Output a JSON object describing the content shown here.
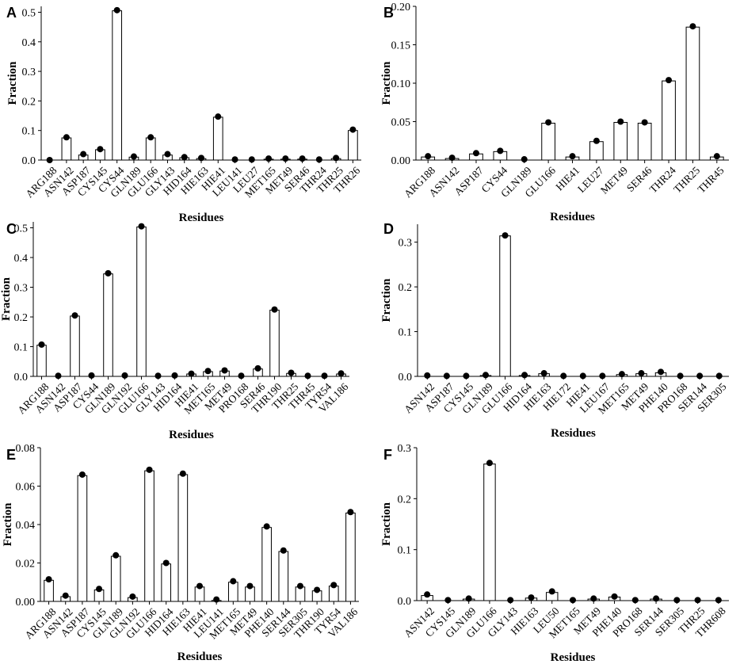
{
  "figure": {
    "colors": {
      "bar_fill": "#ffffff",
      "bar_stroke": "#000000",
      "point": "#000000",
      "axis": "#000000"
    }
  },
  "chart_data": [
    {
      "type": "bar",
      "panel": "A",
      "title": "",
      "xlabel": "Residues",
      "ylabel": "Fraction",
      "ylim": [
        0,
        0.52
      ],
      "yticks": [
        0.0,
        0.1,
        0.2,
        0.3,
        0.4,
        0.5
      ],
      "ytick_labels": [
        "0.0",
        "0.1",
        "0.2",
        "0.3",
        "0.4",
        "0.5"
      ],
      "categories": [
        "ARG188",
        "ASN142",
        "ASP187",
        "CYS145",
        "CYS44",
        "GLN189",
        "GLU166",
        "GLY143",
        "HID164",
        "HIE163",
        "HIE41",
        "LEU141",
        "LEU27",
        "MET165",
        "MET49",
        "SER46",
        "THR24",
        "THR25",
        "THR26"
      ],
      "bars": [
        0.0,
        0.075,
        0.017,
        0.035,
        0.505,
        0.01,
        0.075,
        0.017,
        0.008,
        0.005,
        0.145,
        0.0,
        0.0,
        0.003,
        0.003,
        0.003,
        0.0,
        0.005,
        0.1
      ],
      "points": [
        0.0,
        0.077,
        0.02,
        0.037,
        0.507,
        0.012,
        0.077,
        0.02,
        0.01,
        0.007,
        0.147,
        0.002,
        0.002,
        0.005,
        0.005,
        0.005,
        0.002,
        0.007,
        0.103
      ]
    },
    {
      "type": "bar",
      "panel": "B",
      "title": "",
      "xlabel": "Residues",
      "ylabel": "Fraction",
      "ylim": [
        0,
        0.2
      ],
      "yticks": [
        0.0,
        0.05,
        0.1,
        0.15,
        0.2
      ],
      "ytick_labels": [
        "0.00",
        "0.05",
        "0.10",
        "0.15",
        "0.20"
      ],
      "categories": [
        "ARG188",
        "ASN142",
        "ASP187",
        "CYS44",
        "GLN189",
        "GLU166",
        "HIE41",
        "LEU27",
        "MET49",
        "SER46",
        "THR24",
        "THR25",
        "THR45"
      ],
      "bars": [
        0.004,
        0.002,
        0.008,
        0.011,
        0.0,
        0.048,
        0.004,
        0.024,
        0.049,
        0.048,
        0.103,
        0.173,
        0.004
      ],
      "points": [
        0.005,
        0.003,
        0.009,
        0.012,
        0.001,
        0.049,
        0.005,
        0.025,
        0.05,
        0.049,
        0.104,
        0.174,
        0.005
      ]
    },
    {
      "type": "bar",
      "panel": "C",
      "title": "",
      "xlabel": "Residues",
      "ylabel": "Fraction",
      "ylim": [
        0,
        0.52
      ],
      "yticks": [
        0.0,
        0.1,
        0.2,
        0.3,
        0.4,
        0.5
      ],
      "ytick_labels": [
        "0.0",
        "0.1",
        "0.2",
        "0.3",
        "0.4",
        "0.5"
      ],
      "categories": [
        "ARG188",
        "ASN142",
        "ASP187",
        "CYS44",
        "GLN189",
        "GLN192",
        "GLU166",
        "GLY143",
        "HID164",
        "HIE41",
        "MET165",
        "MET49",
        "PRO168",
        "SER46",
        "THR190",
        "THR25",
        "THR45",
        "TYR54",
        "VAL186"
      ],
      "bars": [
        0.105,
        0.0,
        0.203,
        0.0,
        0.345,
        0.0,
        0.503,
        0.0,
        0.0,
        0.008,
        0.016,
        0.018,
        0.0,
        0.025,
        0.223,
        0.01,
        0.0,
        0.0,
        0.008
      ],
      "points": [
        0.107,
        0.002,
        0.205,
        0.003,
        0.347,
        0.003,
        0.505,
        0.002,
        0.003,
        0.009,
        0.018,
        0.02,
        0.002,
        0.027,
        0.225,
        0.012,
        0.002,
        0.002,
        0.01
      ]
    },
    {
      "type": "bar",
      "panel": "D",
      "title": "",
      "xlabel": "Residues",
      "ylabel": "Fraction",
      "ylim": [
        0,
        0.34
      ],
      "yticks": [
        0.0,
        0.1,
        0.2,
        0.3
      ],
      "ytick_labels": [
        "0.0",
        "0.1",
        "0.2",
        "0.3"
      ],
      "categories": [
        "ASN142",
        "ASP187",
        "CYS145",
        "GLN189",
        "GLU166",
        "HID164",
        "HIE163",
        "HIE172",
        "HIE41",
        "LEU167",
        "MET165",
        "MET49",
        "PHE140",
        "PRO168",
        "SER144",
        "SER305"
      ],
      "bars": [
        0.0,
        0.0,
        0.0,
        0.002,
        0.314,
        0.002,
        0.006,
        0.0,
        0.0,
        0.0,
        0.004,
        0.006,
        0.008,
        0.0,
        0.0,
        0.0
      ],
      "points": [
        0.002,
        0.001,
        0.001,
        0.003,
        0.315,
        0.003,
        0.007,
        0.001,
        0.001,
        0.001,
        0.005,
        0.007,
        0.01,
        0.001,
        0.001,
        0.001
      ]
    },
    {
      "type": "bar",
      "panel": "E",
      "title": "",
      "xlabel": "Residues",
      "ylabel": "Fraction",
      "ylim": [
        0,
        0.08
      ],
      "yticks": [
        0.0,
        0.02,
        0.04,
        0.06,
        0.08
      ],
      "ytick_labels": [
        "0.00",
        "0.02",
        "0.04",
        "0.06",
        "0.08"
      ],
      "categories": [
        "ARG188",
        "ASN142",
        "ASP187",
        "CYS145",
        "GLN189",
        "GLN192",
        "GLU166",
        "HID164",
        "HIE163",
        "HIE41",
        "LEU141",
        "MET165",
        "MET49",
        "PHE140",
        "SER144",
        "SER305",
        "THR190",
        "TYR54",
        "VAL186"
      ],
      "bars": [
        0.011,
        0.0025,
        0.0655,
        0.006,
        0.0235,
        0.002,
        0.068,
        0.0195,
        0.066,
        0.0075,
        0.0005,
        0.01,
        0.0075,
        0.0385,
        0.026,
        0.0075,
        0.0055,
        0.008,
        0.046
      ],
      "points": [
        0.0115,
        0.003,
        0.066,
        0.0065,
        0.024,
        0.0025,
        0.0685,
        0.02,
        0.0665,
        0.008,
        0.001,
        0.0105,
        0.008,
        0.039,
        0.0265,
        0.008,
        0.006,
        0.0085,
        0.0465
      ]
    },
    {
      "type": "bar",
      "panel": "F",
      "title": "",
      "xlabel": "Residues",
      "ylabel": "Fraction",
      "ylim": [
        0,
        0.3
      ],
      "yticks": [
        0.0,
        0.1,
        0.2,
        0.3
      ],
      "ytick_labels": [
        "0.0",
        "0.1",
        "0.2",
        "0.3"
      ],
      "categories": [
        "ASN142",
        "CYS145",
        "GLN189",
        "GLU166",
        "GLY143",
        "HIE163",
        "LEU50",
        "MET165",
        "MET49",
        "PHE140",
        "PRO168",
        "SER144",
        "SER305",
        "THR25",
        "THR608"
      ],
      "bars": [
        0.01,
        0.0,
        0.003,
        0.268,
        0.0,
        0.005,
        0.016,
        0.0,
        0.003,
        0.007,
        0.0,
        0.003,
        0.0,
        0.0,
        0.0
      ],
      "points": [
        0.012,
        0.001,
        0.004,
        0.27,
        0.001,
        0.006,
        0.018,
        0.001,
        0.004,
        0.008,
        0.001,
        0.004,
        0.001,
        0.001,
        0.001
      ]
    }
  ]
}
